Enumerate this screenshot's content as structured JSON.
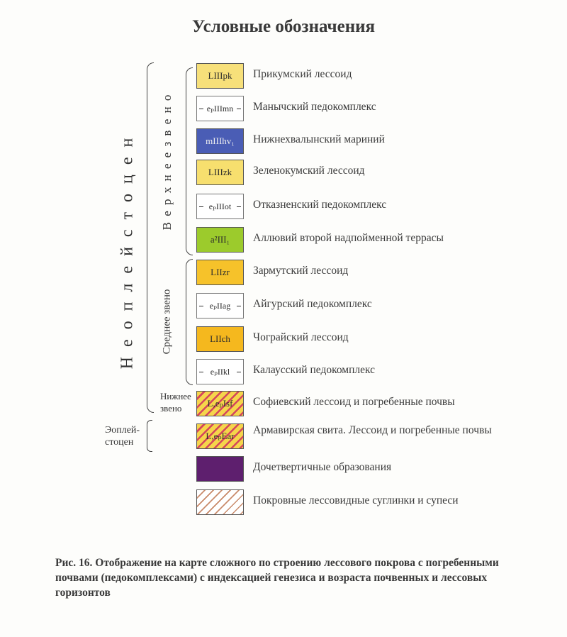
{
  "title": "Условные обозначения",
  "groups": {
    "neopleistocene": "Н е о п л е й с т о ц е н",
    "upper_link": "В е р х н е е   з в е н о",
    "middle_link": "Среднее звено",
    "lower_link": "Нижнее звено",
    "eopleistocene": "Эоплей- стоцен"
  },
  "legend": [
    {
      "code": "LIIIpk",
      "label": "Прикумский лессоид",
      "color": "#f7e07a"
    },
    {
      "code": "eₚIIImn",
      "label": "Манычский педокомплекс",
      "color": "#ffffff"
    },
    {
      "code": "mIIIhv₁",
      "label": "Нижнехвалынский мариний",
      "color": "#4a5db5"
    },
    {
      "code": "LIIIzk",
      "label": "Зеленокумский лессоид",
      "color": "#f7df6e"
    },
    {
      "code": "eₚIIIot",
      "label": "Отказненский педокомплекс",
      "color": "#ffffff"
    },
    {
      "code": "a²III₁",
      "label": "Аллювий второй надпойменной террасы",
      "color": "#9ccb2c"
    },
    {
      "code": "LIIzr",
      "label": "Зармутский лессоид",
      "color": "#f6c22a"
    },
    {
      "code": "eₚIIag",
      "label": "Айгурский педокомплекс",
      "color": "#ffffff"
    },
    {
      "code": "LIIch",
      "label": "Чограйский лессоид",
      "color": "#f5b81e"
    },
    {
      "code": "eₚIIkl",
      "label": "Калаусский педокомплекс",
      "color": "#ffffff"
    },
    {
      "code": "L,eₚIsf",
      "label": "Софиевский лессоид и погребенные почвы",
      "color": "#f5d54b"
    },
    {
      "code": "L,eₚEar",
      "label": "Армавирская свита. Лессоид и погребенные почвы",
      "color": "#f5d54b"
    },
    {
      "code": "",
      "label": "Дочетвертичные образования",
      "color": "#5e1f6e"
    },
    {
      "code": "",
      "label": "Покровные лессовидные суглинки и супеси",
      "color": "#ffffff"
    }
  ],
  "caption": "Рис. 16. Отображение на карте сложного по строению лессового покрова с погребенными почвами (педокомплексами) с индексацией генезиса и возраста почвенных и лессовых горизонтов"
}
